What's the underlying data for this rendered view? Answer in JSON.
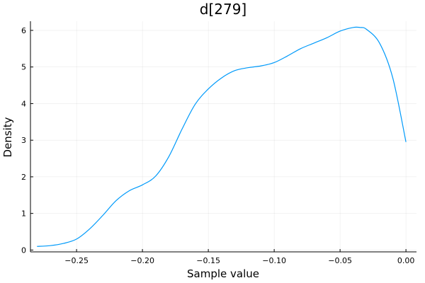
{
  "chart_data": {
    "type": "line",
    "title": "d[279]",
    "xlabel": "Sample value",
    "ylabel": "Density",
    "xlim": [
      -0.285,
      0.008
    ],
    "ylim": [
      -0.05,
      6.25
    ],
    "xticks": [
      -0.25,
      -0.2,
      -0.15,
      -0.1,
      -0.05,
      0.0
    ],
    "xtick_labels": [
      "−0.25",
      "−0.20",
      "−0.15",
      "−0.10",
      "−0.05",
      "0.00"
    ],
    "yticks": [
      0,
      1,
      2,
      3,
      4,
      5,
      6
    ],
    "ytick_labels": [
      "0",
      "1",
      "2",
      "3",
      "4",
      "5",
      "6"
    ],
    "grid": true,
    "legend": "none",
    "series": [
      {
        "color": "#009AFA",
        "x": [
          -0.28,
          -0.27,
          -0.26,
          -0.25,
          -0.24,
          -0.23,
          -0.22,
          -0.21,
          -0.2,
          -0.19,
          -0.18,
          -0.17,
          -0.16,
          -0.15,
          -0.14,
          -0.13,
          -0.12,
          -0.11,
          -0.1,
          -0.09,
          -0.08,
          -0.07,
          -0.06,
          -0.05,
          -0.04,
          -0.035,
          -0.03,
          -0.02,
          -0.01,
          0.0
        ],
        "y": [
          0.1,
          0.12,
          0.18,
          0.3,
          0.58,
          0.95,
          1.35,
          1.62,
          1.78,
          2.02,
          2.55,
          3.3,
          3.98,
          4.4,
          4.7,
          4.9,
          4.98,
          5.03,
          5.12,
          5.3,
          5.5,
          5.65,
          5.8,
          5.98,
          6.08,
          6.08,
          6.03,
          5.65,
          4.7,
          2.95
        ]
      }
    ]
  }
}
